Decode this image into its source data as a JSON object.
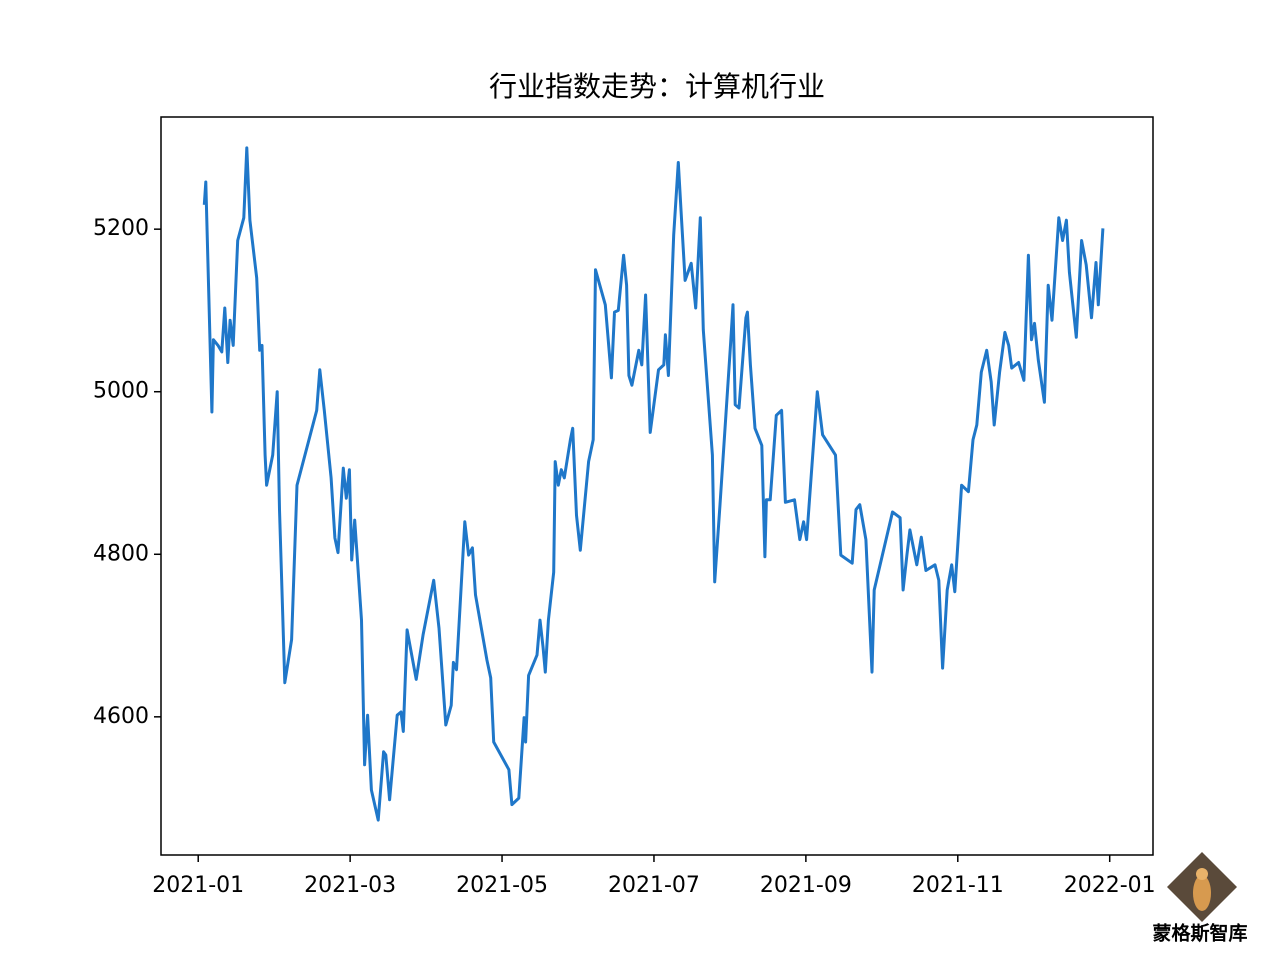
{
  "chart_data": {
    "type": "line",
    "title": "行业指数走势：计算机行业",
    "xlim": [
      -0.49,
      12.57
    ],
    "ylim": [
      4430,
      5338
    ],
    "xticks": [
      {
        "value": 0,
        "label": "2021-01"
      },
      {
        "value": 2,
        "label": "2021-03"
      },
      {
        "value": 4,
        "label": "2021-05"
      },
      {
        "value": 6,
        "label": "2021-07"
      },
      {
        "value": 8,
        "label": "2021-09"
      },
      {
        "value": 10,
        "label": "2021-11"
      },
      {
        "value": 12,
        "label": "2022-01"
      }
    ],
    "yticks": [
      4600,
      4800,
      5000,
      5200
    ],
    "series": [
      {
        "color": "#1f77c9",
        "x": [
          0.08,
          0.1,
          0.18,
          0.2,
          0.26,
          0.31,
          0.35,
          0.39,
          0.42,
          0.46,
          0.52,
          0.6,
          0.64,
          0.68,
          0.77,
          0.81,
          0.84,
          0.88,
          0.9,
          0.98,
          1.04,
          1.07,
          1.14,
          1.23,
          1.3,
          1.56,
          1.6,
          1.66,
          1.75,
          1.8,
          1.84,
          1.91,
          1.95,
          1.99,
          2.02,
          2.06,
          2.15,
          2.19,
          2.23,
          2.28,
          2.37,
          2.44,
          2.47,
          2.52,
          2.62,
          2.67,
          2.7,
          2.75,
          2.87,
          2.96,
          3.1,
          3.17,
          3.26,
          3.33,
          3.36,
          3.4,
          3.51,
          3.56,
          3.61,
          3.65,
          3.8,
          3.85,
          3.89,
          4.09,
          4.13,
          4.22,
          4.29,
          4.31,
          4.35,
          4.46,
          4.5,
          4.54,
          4.57,
          4.61,
          4.68,
          4.7,
          4.74,
          4.78,
          4.82,
          4.9,
          4.93,
          4.98,
          5.03,
          5.14,
          5.2,
          5.23,
          5.36,
          5.44,
          5.48,
          5.53,
          5.6,
          5.64,
          5.67,
          5.71,
          5.8,
          5.84,
          5.89,
          5.95,
          6.06,
          6.13,
          6.15,
          6.19,
          6.26,
          6.32,
          6.36,
          6.41,
          6.49,
          6.55,
          6.61,
          6.65,
          6.77,
          6.8,
          6.87,
          7.01,
          7.04,
          7.07,
          7.12,
          7.21,
          7.23,
          7.27,
          7.33,
          7.42,
          7.46,
          7.48,
          7.53,
          7.61,
          7.68,
          7.73,
          7.85,
          7.92,
          7.97,
          8.01,
          8.15,
          8.22,
          8.39,
          8.46,
          8.61,
          8.66,
          8.71,
          8.79,
          8.87,
          8.9,
          9.14,
          9.24,
          9.28,
          9.33,
          9.37,
          9.46,
          9.52,
          9.58,
          9.7,
          9.75,
          9.8,
          9.86,
          9.92,
          9.96,
          10.05,
          10.14,
          10.2,
          10.25,
          10.31,
          10.38,
          10.44,
          10.48,
          10.55,
          10.62,
          10.67,
          10.71,
          10.8,
          10.87,
          10.93,
          10.97,
          11.01,
          11.06,
          11.14,
          11.19,
          11.24,
          11.33,
          11.38,
          11.43,
          11.47,
          11.56,
          11.63,
          11.69,
          11.76,
          11.82,
          11.85,
          11.91
        ],
        "values": [
          5230,
          5258,
          4975,
          5064,
          5057,
          5049,
          5103,
          5036,
          5088,
          5057,
          5186,
          5214,
          5300,
          5211,
          5140,
          5051,
          5057,
          4922,
          4885,
          4922,
          5000,
          4855,
          4642,
          4695,
          4885,
          4977,
          5027,
          4977,
          4894,
          4820,
          4802,
          4906,
          4869,
          4904,
          4793,
          4842,
          4719,
          4541,
          4602,
          4510,
          4473,
          4557,
          4553,
          4498,
          4602,
          4606,
          4582,
          4707,
          4646,
          4701,
          4768,
          4709,
          4590,
          4614,
          4667,
          4658,
          4840,
          4799,
          4808,
          4750,
          4670,
          4648,
          4569,
          4535,
          4492,
          4500,
          4599,
          4569,
          4651,
          4676,
          4719,
          4685,
          4655,
          4719,
          4778,
          4914,
          4885,
          4904,
          4894,
          4941,
          4955,
          4848,
          4805,
          4914,
          4941,
          5150,
          5107,
          5017,
          5098,
          5100,
          5168,
          5131,
          5020,
          5008,
          5051,
          5033,
          5119,
          4950,
          5027,
          5033,
          5070,
          5020,
          5193,
          5282,
          5217,
          5137,
          5158,
          5103,
          5214,
          5076,
          4922,
          4766,
          4861,
          5061,
          5107,
          4984,
          4980,
          5091,
          5098,
          5033,
          4955,
          4934,
          4797,
          4867,
          4867,
          4971,
          4977,
          4864,
          4867,
          4818,
          4840,
          4818,
          5000,
          4947,
          4922,
          4799,
          4789,
          4855,
          4861,
          4818,
          4655,
          4756,
          4852,
          4845,
          4756,
          4799,
          4830,
          4787,
          4821,
          4780,
          4787,
          4768,
          4660,
          4756,
          4787,
          4754,
          4885,
          4877,
          4941,
          4959,
          5024,
          5051,
          5012,
          4959,
          5024,
          5073,
          5057,
          5029,
          5036,
          5014,
          5168,
          5064,
          5084,
          5039,
          4987,
          5131,
          5088,
          5214,
          5186,
          5211,
          5147,
          5067,
          5186,
          5156,
          5091,
          5159,
          5107,
          5201
        ]
      }
    ]
  },
  "watermark": {
    "name": "蒙格斯智库"
  }
}
